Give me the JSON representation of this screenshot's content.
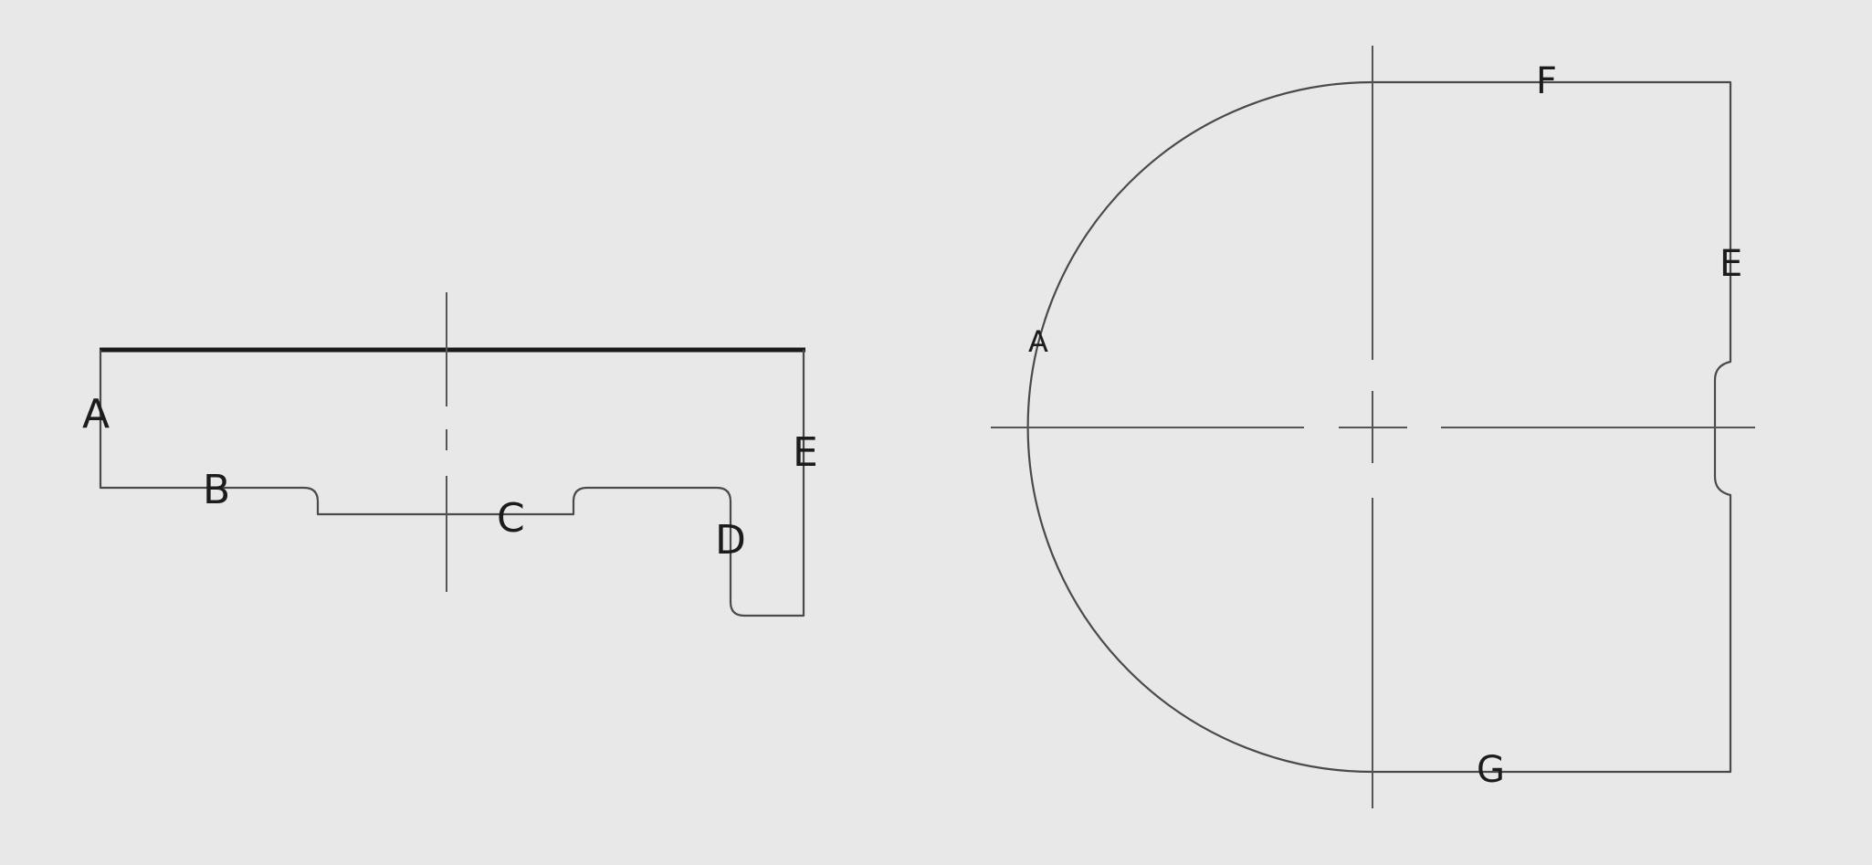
{
  "side_view": {
    "labels": {
      "a": "A",
      "b": "B",
      "c": "C",
      "d": "D",
      "e": "E"
    }
  },
  "top_view": {
    "labels": {
      "a": "A",
      "e": "E",
      "f": "F",
      "g": "G"
    }
  }
}
